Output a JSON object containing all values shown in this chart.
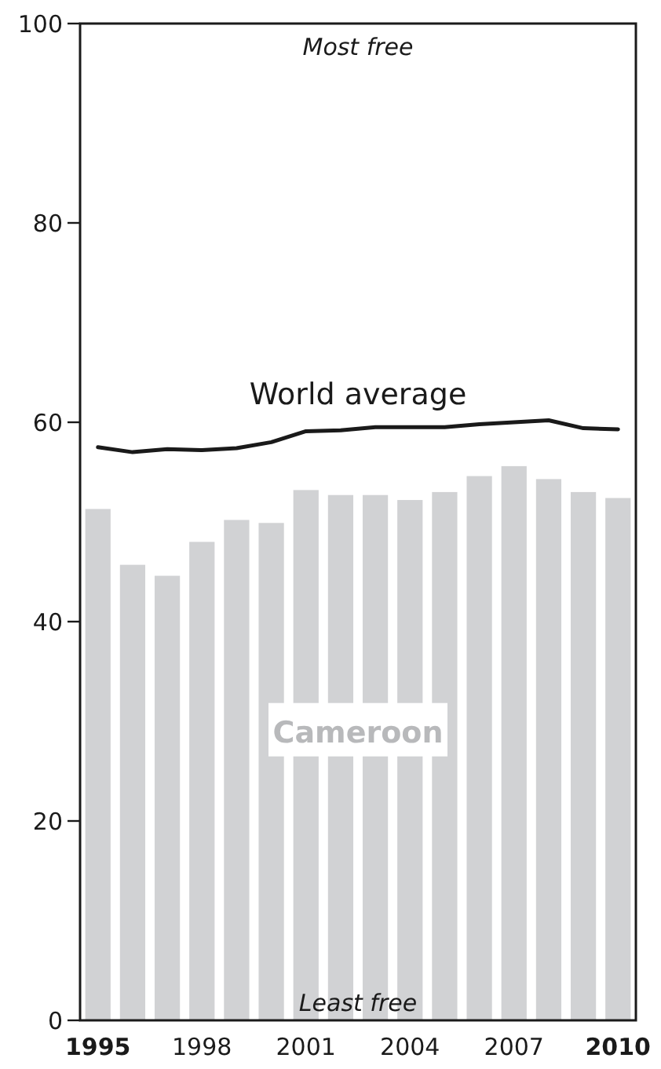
{
  "chart_data": {
    "type": "bar",
    "categories": [
      "1995",
      null,
      null,
      "1998",
      null,
      null,
      "2001",
      null,
      null,
      "2004",
      null,
      null,
      "2007",
      null,
      null,
      "2010"
    ],
    "series": [
      {
        "name": "Cameroon",
        "color": "#d1d2d4",
        "values": [
          51.3,
          45.7,
          44.6,
          48.0,
          50.2,
          49.9,
          53.2,
          52.7,
          52.7,
          52.2,
          53.0,
          54.6,
          55.6,
          54.3,
          53.0,
          52.4
        ]
      },
      {
        "name": "World average",
        "type": "line",
        "color": "#1a1a1a",
        "values": [
          57.5,
          57.0,
          57.3,
          57.2,
          57.4,
          58.0,
          59.1,
          59.2,
          59.5,
          59.5,
          59.5,
          59.8,
          60.0,
          60.2,
          59.4,
          59.3
        ]
      }
    ],
    "ylim": [
      0,
      100
    ],
    "yticks": [
      0,
      20,
      40,
      60,
      80,
      100
    ],
    "annotations": [
      "Most free",
      "Least free"
    ],
    "grid": false
  }
}
